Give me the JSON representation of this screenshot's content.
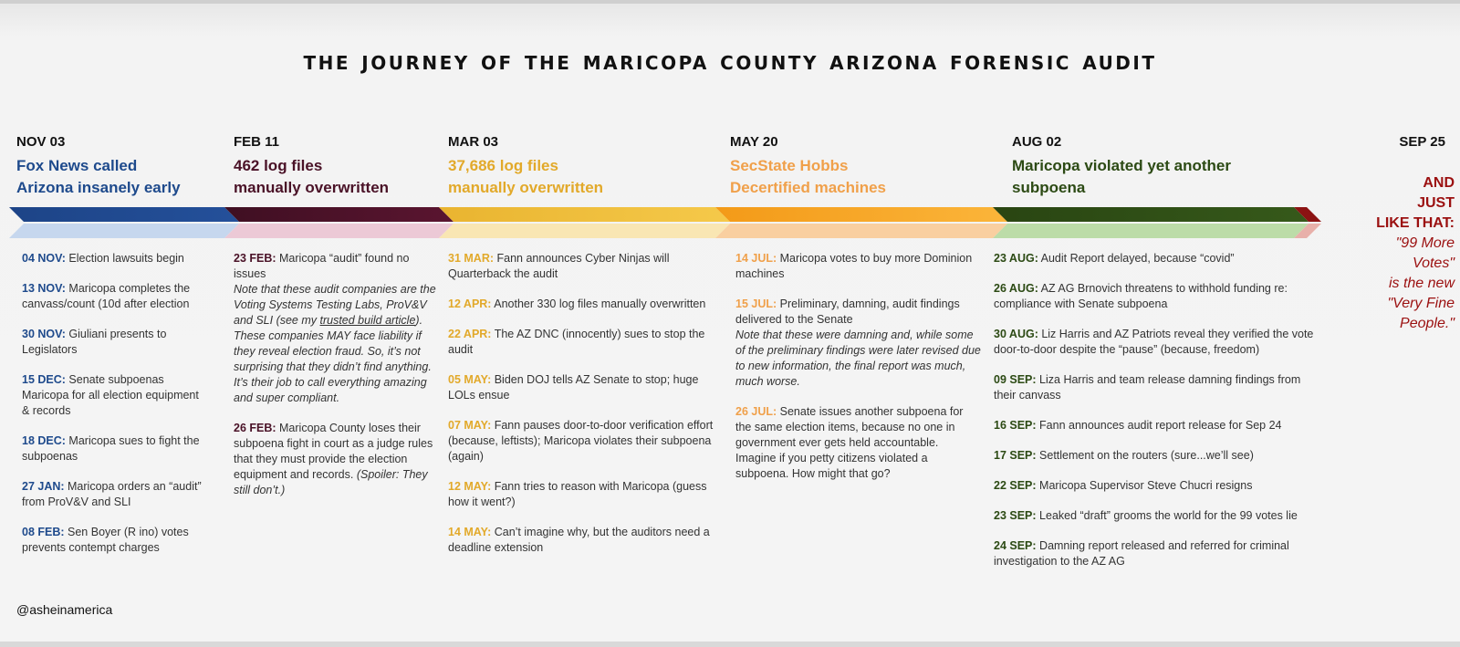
{
  "title": "The Journey of the Maricopa County Arizona Forensic Audit",
  "handle": "@asheinamerica",
  "colors": {
    "nov": "#1e4a8c",
    "feb": "#4a1227",
    "mar": "#e8b530",
    "may": "#f39c1e",
    "aug": "#2c4a14",
    "sep": "#8c1313"
  },
  "milestones": [
    {
      "date": "NOV 03",
      "line1": "Fox News called",
      "line2": "Arizona insanely early"
    },
    {
      "date": "FEB 11",
      "line1": "462 log files",
      "line2": "manually overwritten"
    },
    {
      "date": "MAR 03",
      "line1": "37,686 log files",
      "line2": "manually overwritten"
    },
    {
      "date": "MAY 20",
      "line1": "SecState Hobbs",
      "line2": "Decertified machines"
    },
    {
      "date": "AUG 02",
      "line1": "Maricopa violated yet another",
      "line2": "subpoena"
    }
  ],
  "final": {
    "date": "SEP 25",
    "line1": "AND",
    "line2": "JUST",
    "line3": "LIKE THAT:",
    "q1": "\"99 More",
    "q2": "Votes\"",
    "q3": "is the new",
    "q4": "\"Very Fine",
    "q5": "People.\""
  },
  "col1": [
    {
      "date": "04 NOV:",
      "text": " Election lawsuits begin"
    },
    {
      "date": "13 NOV:",
      "text": " Maricopa completes the canvass/count (10d after election"
    },
    {
      "date": "30 NOV:",
      "text": " Giuliani presents to Legislators"
    },
    {
      "date": "15 DEC:",
      "text": " Senate subpoenas Maricopa for all election equipment & records"
    },
    {
      "date": "18 DEC:",
      "text": " Maricopa sues to fight the subpoenas"
    },
    {
      "date": "27 JAN:",
      "text": " Maricopa orders an “audit” from ProV&V and SLI"
    },
    {
      "date": "08 FEB:",
      "text": " Sen Boyer (R ino) votes prevents contempt charges"
    }
  ],
  "col2": {
    "e1_date": "23 FEB:",
    "e1_text": " Maricopa “audit” found no issues",
    "e1_note_a": "Note that these audit companies are the Voting Systems Testing Labs, ProV&V and SLI (see my ",
    "e1_note_link": "trusted build article",
    "e1_note_b": "). These companies MAY face liability if they reveal election fraud. So, it’s not surprising that they didn’t find anything. It’s their job to call everything amazing and super compliant.",
    "e2_date": "26 FEB:",
    "e2_text": " Maricopa County loses their subpoena fight in court as a judge rules that they must provide the election equipment and records.",
    "e2_note": "(Spoiler: They still don’t.)"
  },
  "col3": [
    {
      "date": "31 MAR:",
      "text": " Fann announces Cyber Ninjas will Quarterback the audit"
    },
    {
      "date": "12 APR:",
      "text": " Another 330 log files manually overwritten"
    },
    {
      "date": "22 APR:",
      "text": " The AZ DNC (innocently) sues to stop the audit"
    },
    {
      "date": "05 MAY:",
      "text": " Biden DOJ tells AZ Senate to stop;  huge LOLs ensue"
    },
    {
      "date": "07 MAY:",
      "text": " Fann pauses door-to-door verification effort (because, leftists); Maricopa violates their subpoena (again)"
    },
    {
      "date": "12 MAY:",
      "text": " Fann tries to reason with Maricopa (guess how it went?)"
    },
    {
      "date": "14 MAY:",
      "text": " Can’t imagine why, but the auditors need a deadline extension"
    }
  ],
  "col4": {
    "e1_date": "14 JUL:",
    "e1_text": "  Maricopa votes to buy more Dominion machines",
    "e2_date": "15 JUL:",
    "e2_text": " Preliminary, damning, audit findings delivered to the Senate",
    "e2_note": "Note that these were damning and, while some of the preliminary findings were later revised due to new information, the final report was much, much worse.",
    "e3_date": "26 JUL:",
    "e3_text": " Senate issues another subpoena for the same election items, because no one in government ever gets held accountable. Imagine if you petty citizens violated a subpoena. How might that go?"
  },
  "col5": [
    {
      "date": "23 AUG:",
      "text": " Audit Report delayed, because “covid”"
    },
    {
      "date": "26 AUG:",
      "text": " AZ AG Brnovich threatens to withhold funding re: compliance with Senate subpoena"
    },
    {
      "date": "30 AUG:",
      "text": " Liz Harris and AZ Patriots reveal they verified the vote door-to-door despite the “pause” (because, freedom)"
    },
    {
      "date": "09 SEP:",
      "text": " Liza Harris and team release damning findings from their canvass"
    },
    {
      "date": "16 SEP:",
      "text": " Fann announces audit report release for Sep 24"
    },
    {
      "date": "17 SEP:",
      "text": "  Settlement on the routers (sure...we’ll see)"
    },
    {
      "date": "22 SEP:",
      "text": " Maricopa Supervisor Steve Chucri resigns"
    },
    {
      "date": "23 SEP:",
      "text": " Leaked “draft” grooms the world for the 99 votes lie"
    },
    {
      "date": "24 SEP:",
      "text": " Damning report released and referred for criminal investigation to the AZ AG"
    }
  ]
}
